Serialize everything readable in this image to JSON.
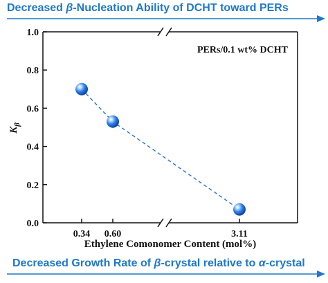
{
  "header_arrow": {
    "text_before": "Decreased ",
    "symbol": "β",
    "text_after": "-Nucleation Ability of DCHT toward PERs"
  },
  "footer_arrow": {
    "text_before": "Decreased Growth Rate of ",
    "symbol1": "β",
    "text_middle": "-crystal relative to ",
    "symbol2": "α",
    "text_after": "-crystal"
  },
  "colors": {
    "accent": "#1f78c8",
    "marker": "#2f7fe8",
    "dash": "#2a6fd0"
  },
  "chart_data": {
    "type": "scatter",
    "annotation": "PERs/0.1 wt% DCHT",
    "xlabel": "Ethylene Comonomer Content (mol%)",
    "ylabel_main": "K",
    "ylabel_sub": "β",
    "x_ticks": [
      "0.34",
      "0.60",
      "3.11"
    ],
    "y_ticks": [
      "0.0",
      "0.2",
      "0.4",
      "0.6",
      "0.8",
      "1.0"
    ],
    "ylim": [
      0,
      1.0
    ],
    "broken_x_axis": true,
    "points": [
      {
        "x": 0.34,
        "y": 0.7
      },
      {
        "x": 0.6,
        "y": 0.53
      },
      {
        "x": 3.11,
        "y": 0.07
      }
    ],
    "connector": "dashed"
  }
}
